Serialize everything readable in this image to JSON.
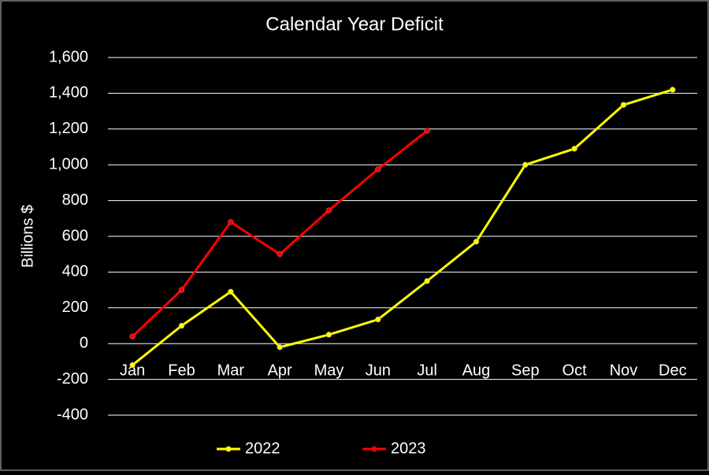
{
  "chart_data": {
    "type": "line",
    "title": "Calendar Year Deficit",
    "y_label": "Billions $",
    "categories": [
      "Jan",
      "Feb",
      "Mar",
      "Apr",
      "May",
      "Jun",
      "Jul",
      "Aug",
      "Sep",
      "Oct",
      "Nov",
      "Dec"
    ],
    "series": [
      {
        "name": "2022",
        "color": "#ffff00",
        "values": [
          -120,
          100,
          290,
          -20,
          50,
          135,
          350,
          570,
          1000,
          1090,
          1335,
          1420
        ]
      },
      {
        "name": "2023",
        "color": "#ff0000",
        "values": [
          40,
          300,
          680,
          500,
          745,
          975,
          1190,
          null,
          null,
          null,
          null,
          null
        ]
      }
    ],
    "ylim": [
      -400,
      1600
    ],
    "yticks": [
      -400,
      -200,
      0,
      200,
      400,
      600,
      800,
      {
        "value": 1000,
        "label": "1,000"
      },
      {
        "value": 1200,
        "label": "1,200"
      },
      {
        "value": 1400,
        "label": "1,400"
      },
      {
        "value": 1600,
        "label": "1,600"
      }
    ],
    "grid": true,
    "legend": "bottom"
  }
}
